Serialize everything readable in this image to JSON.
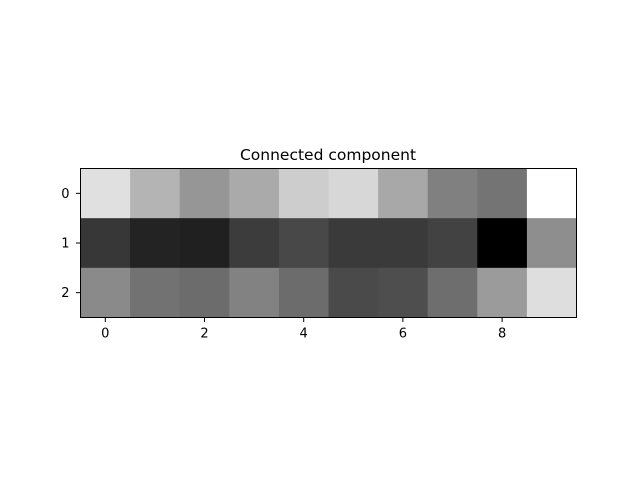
{
  "chart_data": {
    "type": "heatmap",
    "title": "Connected component",
    "xlabel": "",
    "ylabel": "",
    "colormap": "gray",
    "rows": [
      0,
      1,
      2
    ],
    "cols": [
      0,
      1,
      2,
      3,
      4,
      5,
      6,
      7,
      8,
      9
    ],
    "xticks": [
      0,
      2,
      4,
      6,
      8
    ],
    "yticks": [
      0,
      1,
      2
    ],
    "xlim": [
      -0.5,
      9.5
    ],
    "ylim": [
      2.5,
      -0.5
    ],
    "values": [
      [
        224,
        180,
        150,
        170,
        205,
        215,
        168,
        128,
        116,
        255
      ],
      [
        55,
        35,
        32,
        60,
        72,
        58,
        58,
        66,
        0,
        142
      ],
      [
        138,
        114,
        108,
        130,
        108,
        74,
        78,
        110,
        155,
        222
      ]
    ],
    "vmin": 0,
    "vmax": 255,
    "grid": false,
    "legend": "none"
  }
}
